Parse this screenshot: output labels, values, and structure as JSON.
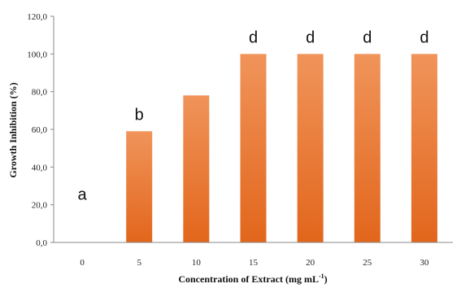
{
  "chart_data": {
    "type": "bar",
    "categories": [
      "0",
      "5",
      "10",
      "15",
      "20",
      "25",
      "30"
    ],
    "values": [
      0,
      59,
      78,
      100,
      100,
      100,
      100
    ],
    "significance_letters": [
      "a",
      "b",
      "",
      "d",
      "d",
      "d",
      "d"
    ],
    "ylabel": "Growth Inhibition  (%)",
    "xlabel_main": "Concentration of Extract (mg mL",
    "xlabel_sup": "-1",
    "xlabel_end": ")",
    "ylim": [
      0,
      120
    ],
    "yticks": [
      "0,0",
      "20,0",
      "40,0",
      "60,0",
      "80,0",
      "100,0",
      "120,0"
    ],
    "grid": false,
    "legend": "none",
    "colors": {
      "bar_top": "#F0945A",
      "bar_bottom": "#E2661C",
      "axis": "#888888"
    }
  }
}
